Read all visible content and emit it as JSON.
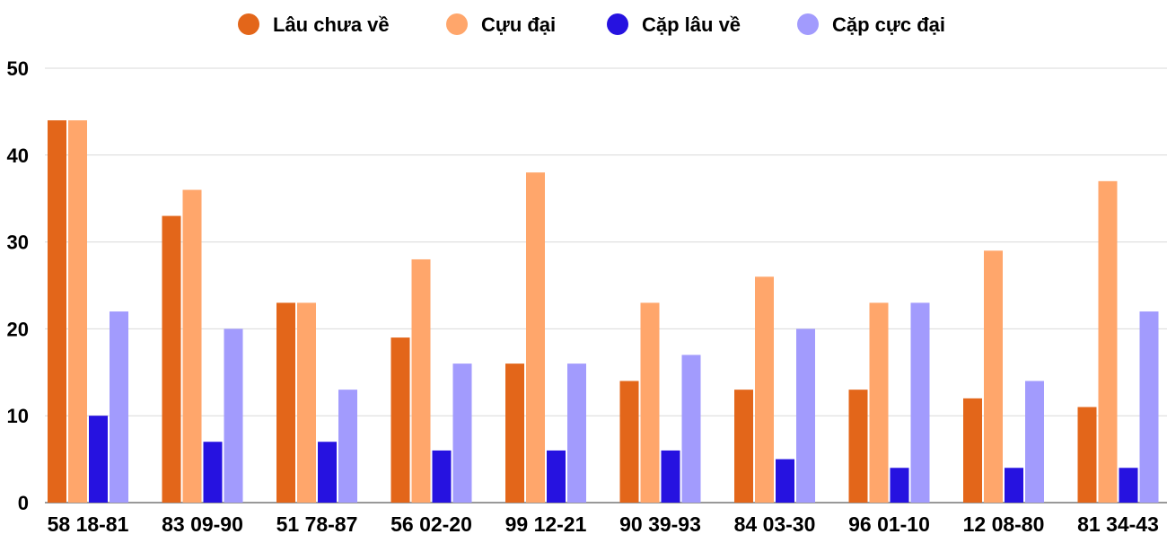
{
  "chart_data": {
    "type": "bar",
    "title": "",
    "xlabel": "",
    "ylabel": "",
    "ylim": [
      0,
      50
    ],
    "yticks": [
      0,
      10,
      20,
      30,
      40,
      50
    ],
    "grid": true,
    "legend_position": "top",
    "categories": [
      "58 18-81",
      "83 09-90",
      "51 78-87",
      "56 02-20",
      "99 12-21",
      "90 39-93",
      "84 03-30",
      "96 01-10",
      "12 08-80",
      "81 34-43"
    ],
    "series": [
      {
        "name": "Lâu chưa về",
        "color": "#e3661a",
        "values": [
          44,
          33,
          23,
          19,
          16,
          14,
          13,
          13,
          12,
          11
        ]
      },
      {
        "name": "Cựu đại",
        "color": "#ffa66b",
        "values": [
          44,
          36,
          23,
          28,
          38,
          23,
          26,
          23,
          29,
          37
        ]
      },
      {
        "name": "Cặp lâu về",
        "color": "#2612e0",
        "values": [
          10,
          7,
          7,
          6,
          6,
          6,
          5,
          4,
          4,
          4
        ]
      },
      {
        "name": "Cặp cực đại",
        "color": "#a29bfd",
        "values": [
          22,
          20,
          13,
          16,
          16,
          17,
          20,
          23,
          14,
          22
        ]
      }
    ]
  }
}
